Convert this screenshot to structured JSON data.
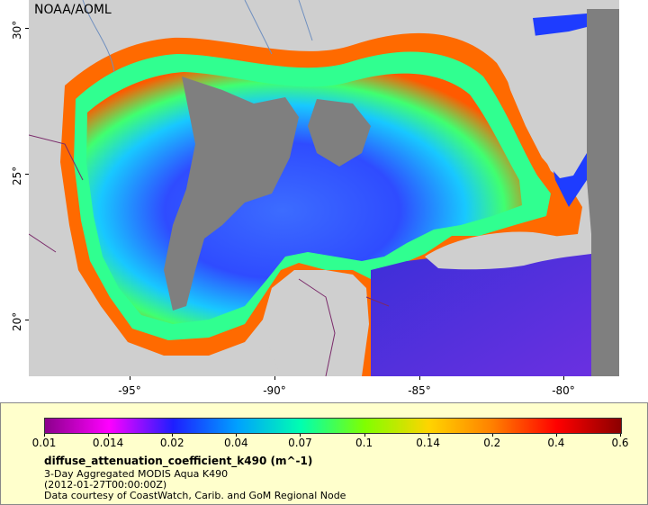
{
  "map": {
    "org_label": "NOAA/AOML",
    "y_ticks": [
      "30°",
      "25°",
      "20°"
    ],
    "x_ticks": [
      "-95°",
      "-90°",
      "-85°",
      "-80°"
    ],
    "colors": {
      "land": "#cfcfcf",
      "no_data": "#7f7f7f",
      "borders": "#7a2a6a",
      "rivers": "#6f8fbf"
    }
  },
  "legend": {
    "colorbar_ticks": [
      "0.01",
      "0.014",
      "0.02",
      "0.04",
      "0.07",
      "0.1",
      "0.14",
      "0.2",
      "0.4",
      "0.6"
    ],
    "colorbar_colors": [
      "#8b008b",
      "#ff00ff",
      "#1e1eff",
      "#00a0ff",
      "#00ffb0",
      "#80ff00",
      "#ffd400",
      "#ff7f00",
      "#ff0000",
      "#8b0000"
    ],
    "variable_title": "diffuse_attenuation_coefficient_k490 (m^-1)",
    "line1": "3-Day Aggregated MODIS Aqua K490",
    "line2": "(2012-01-27T00:00:00Z)",
    "line3": "Data courtesy of CoastWatch, Carib. and GoM Regional Node"
  }
}
